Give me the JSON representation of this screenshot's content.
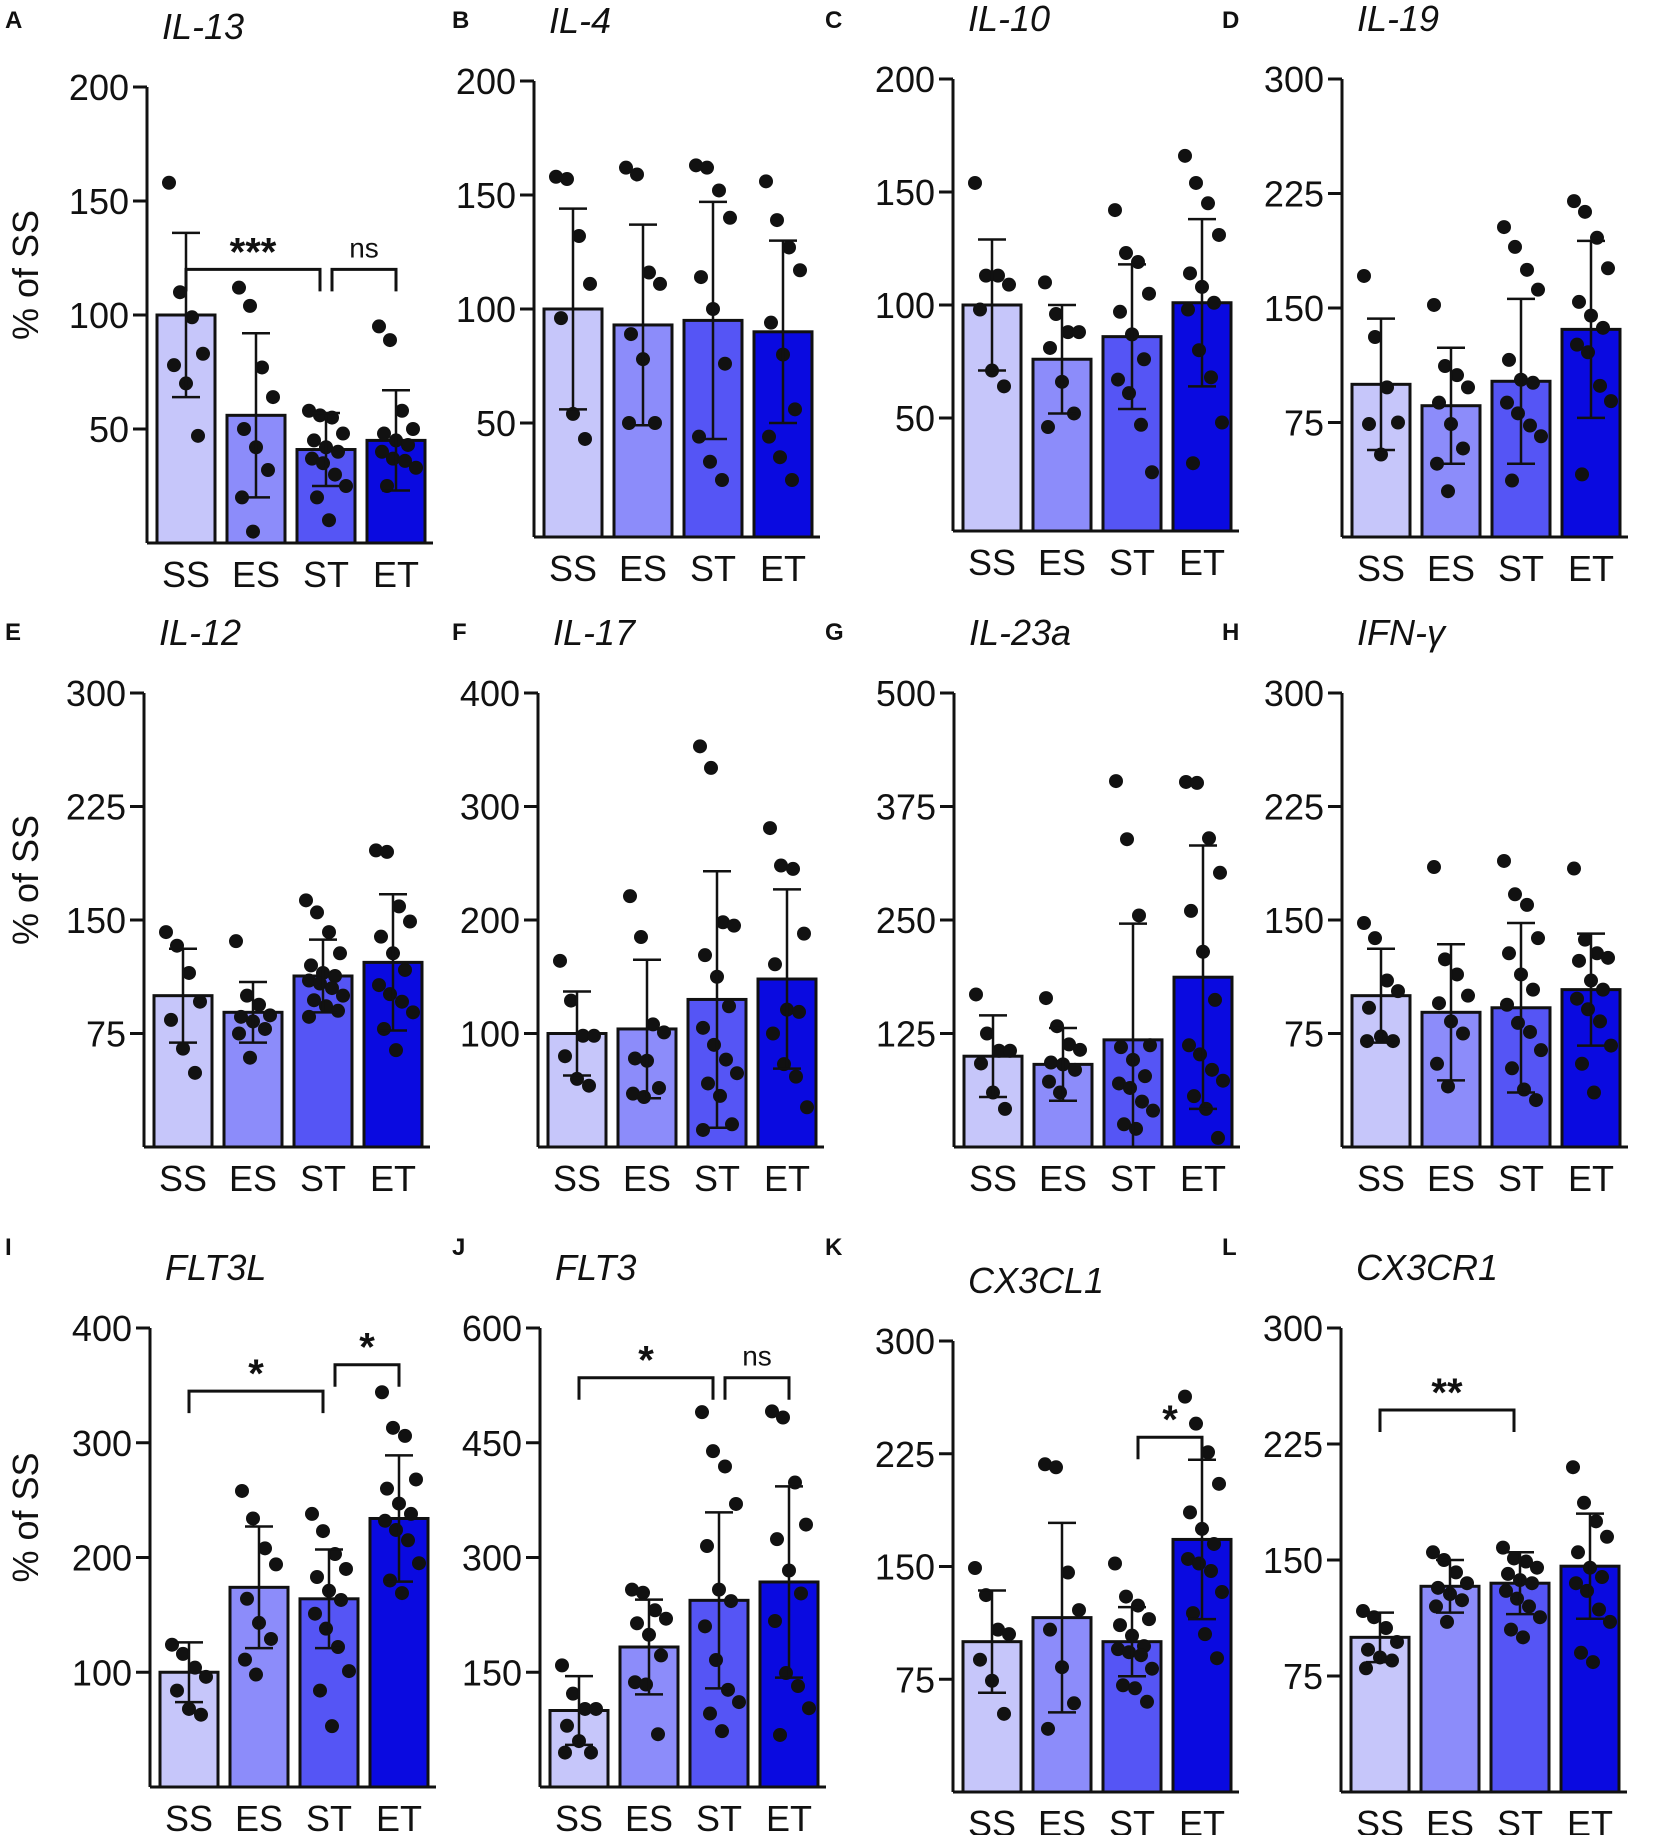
{
  "colors": {
    "SS": "#c6c6fa",
    "ES": "#8c8cfa",
    "ST": "#5555f5",
    "ET": "#0a0ae0",
    "ink": "#111111"
  },
  "chart_data": [
    {
      "type": "bar",
      "panel_letter": "A",
      "title": "IL-13",
      "ylabel": "% of SS",
      "categories": [
        "SS",
        "ES",
        "ST",
        "ET"
      ],
      "ylim": [
        0,
        200
      ],
      "yticks": [
        50,
        100,
        150,
        200
      ],
      "means": [
        100,
        56,
        41,
        45
      ],
      "sd": [
        36,
        36,
        16,
        22
      ],
      "points": [
        [
          158,
          110,
          99,
          83,
          78,
          70,
          47
        ],
        [
          112,
          104,
          77,
          64,
          50,
          42,
          32,
          20,
          5
        ],
        [
          58,
          56,
          55,
          48,
          45,
          42,
          40,
          37,
          35,
          30,
          25,
          20,
          10
        ],
        [
          95,
          89,
          58,
          50,
          48,
          45,
          43,
          40,
          37,
          36,
          33,
          25
        ]
      ],
      "annotations": [
        {
          "from": 0,
          "to": 2,
          "label": "***",
          "y": 120
        },
        {
          "from": 2,
          "to": 3,
          "label": "ns",
          "y": 120
        }
      ]
    },
    {
      "type": "bar",
      "panel_letter": "B",
      "title": "IL-4",
      "ylabel": "",
      "categories": [
        "SS",
        "ES",
        "ST",
        "ET"
      ],
      "ylim": [
        0,
        200
      ],
      "yticks": [
        50,
        100,
        150,
        200
      ],
      "means": [
        100,
        93,
        95,
        90
      ],
      "sd": [
        44,
        44,
        52,
        40
      ],
      "points": [
        [
          158,
          157,
          132,
          111,
          96,
          54,
          43
        ],
        [
          162,
          159,
          116,
          111,
          89,
          78,
          50,
          50
        ],
        [
          163,
          162,
          152,
          140,
          114,
          100,
          76,
          44,
          33,
          25
        ],
        [
          156,
          139,
          127,
          117,
          94,
          80,
          56,
          44,
          35,
          25
        ]
      ],
      "annotations": []
    },
    {
      "type": "bar",
      "panel_letter": "C",
      "title": "IL-10",
      "ylabel": "",
      "categories": [
        "SS",
        "ES",
        "ST",
        "ET"
      ],
      "ylim": [
        0,
        200
      ],
      "yticks": [
        50,
        100,
        150,
        200
      ],
      "means": [
        100,
        76,
        86,
        101
      ],
      "sd": [
        29,
        24,
        32,
        37
      ],
      "points": [
        [
          154,
          113,
          113,
          109,
          98,
          71,
          64
        ],
        [
          110,
          96,
          88,
          88,
          81,
          66,
          52,
          46
        ],
        [
          142,
          123,
          119,
          105,
          97,
          87,
          76,
          67,
          61,
          47,
          26
        ],
        [
          166,
          154,
          145,
          131,
          114,
          108,
          101,
          98,
          80,
          68,
          48,
          30
        ]
      ],
      "annotations": []
    },
    {
      "type": "bar",
      "panel_letter": "D",
      "title": "IL-19",
      "ylabel": "",
      "categories": [
        "SS",
        "ES",
        "ST",
        "ET"
      ],
      "ylim": [
        0,
        300
      ],
      "yticks": [
        75,
        150,
        225,
        300
      ],
      "means": [
        100,
        86,
        102,
        136
      ],
      "sd": [
        43,
        38,
        54,
        58
      ],
      "points": [
        [
          171,
          131,
          98,
          75,
          74,
          54
        ],
        [
          152,
          112,
          106,
          98,
          88,
          74,
          58,
          48,
          30
        ],
        [
          203,
          190,
          175,
          162,
          116,
          103,
          101,
          88,
          81,
          73,
          66,
          37
        ],
        [
          220,
          213,
          196,
          176,
          154,
          145,
          137,
          126,
          121,
          99,
          89,
          41
        ]
      ],
      "annotations": []
    },
    {
      "type": "bar",
      "panel_letter": "E",
      "title": "IL-12",
      "ylabel": "% of SS",
      "categories": [
        "SS",
        "ES",
        "ST",
        "ET"
      ],
      "ylim": [
        0,
        300
      ],
      "yticks": [
        75,
        150,
        225,
        300
      ],
      "means": [
        100,
        89,
        113,
        122
      ],
      "sd": [
        31,
        20,
        24,
        45
      ],
      "points": [
        [
          142,
          133,
          115,
          96,
          84,
          65,
          49
        ],
        [
          136,
          100,
          94,
          87,
          86,
          83,
          78,
          75,
          59
        ],
        [
          163,
          155,
          142,
          128,
          120,
          115,
          113,
          110,
          108,
          105,
          100,
          97,
          93,
          90,
          86
        ],
        [
          196,
          195,
          159,
          149,
          139,
          128,
          117,
          107,
          101,
          96,
          89,
          78,
          64
        ]
      ],
      "annotations": []
    },
    {
      "type": "bar",
      "panel_letter": "F",
      "title": "IL-17",
      "ylabel": "",
      "categories": [
        "SS",
        "ES",
        "ST",
        "ET"
      ],
      "ylim": [
        0,
        400
      ],
      "yticks": [
        100,
        200,
        300,
        400
      ],
      "means": [
        100,
        104,
        130,
        148
      ],
      "sd": [
        37,
        61,
        113,
        79
      ],
      "points": [
        [
          164,
          129,
          98,
          98,
          80,
          60,
          54
        ],
        [
          221,
          185,
          108,
          101,
          78,
          76,
          52,
          47,
          44
        ],
        [
          353,
          334,
          198,
          195,
          169,
          150,
          124,
          105,
          90,
          77,
          65,
          56,
          45,
          20,
          15
        ],
        [
          281,
          248,
          245,
          188,
          161,
          121,
          119,
          100,
          73,
          62,
          35
        ]
      ],
      "annotations": []
    },
    {
      "type": "bar",
      "panel_letter": "G",
      "title": "IL-23a",
      "ylabel": "",
      "categories": [
        "SS",
        "ES",
        "ST",
        "ET"
      ],
      "ylim": [
        0,
        500
      ],
      "yticks": [
        125,
        250,
        375,
        500
      ],
      "means": [
        100,
        91,
        118,
        187
      ],
      "sd": [
        45,
        40,
        128,
        145
      ],
      "points": [
        [
          168,
          125,
          106,
          106,
          92,
          60,
          42
        ],
        [
          164,
          133,
          113,
          107,
          93,
          91,
          85,
          72,
          60
        ],
        [
          403,
          339,
          255,
          112,
          110,
          96,
          78,
          70,
          65,
          50,
          40,
          25,
          20
        ],
        [
          402,
          401,
          340,
          302,
          260,
          215,
          162,
          112,
          102,
          85,
          73,
          56,
          42,
          10
        ]
      ],
      "annotations": []
    },
    {
      "type": "bar",
      "panel_letter": "H",
      "title": "IFN-γ",
      "ylabel": "",
      "categories": [
        "SS",
        "ES",
        "ST",
        "ET"
      ],
      "ylim": [
        0,
        300
      ],
      "yticks": [
        75,
        150,
        225,
        300
      ],
      "means": [
        100,
        89,
        92,
        104
      ],
      "sd": [
        31,
        45,
        56,
        37
      ],
      "points": [
        [
          148,
          138,
          110,
          103,
          92,
          73,
          70,
          70
        ],
        [
          185,
          124,
          114,
          100,
          95,
          83,
          75,
          55,
          40
        ],
        [
          189,
          167,
          160,
          138,
          128,
          114,
          104,
          94,
          82,
          76,
          64,
          52,
          38,
          31
        ],
        [
          184,
          137,
          128,
          125,
          123,
          110,
          104,
          98,
          91,
          83,
          67,
          55,
          36
        ]
      ],
      "annotations": []
    },
    {
      "type": "bar",
      "panel_letter": "I",
      "title": "FLT3L",
      "ylabel": "% of SS",
      "categories": [
        "SS",
        "ES",
        "ST",
        "ET"
      ],
      "ylim": [
        0,
        400
      ],
      "yticks": [
        100,
        200,
        300,
        400
      ],
      "means": [
        100,
        174,
        164,
        234
      ],
      "sd": [
        26,
        53,
        43,
        55
      ],
      "points": [
        [
          124,
          116,
          104,
          96,
          84,
          68,
          63
        ],
        [
          258,
          234,
          208,
          194,
          164,
          143,
          129,
          111,
          98
        ],
        [
          238,
          223,
          203,
          190,
          183,
          171,
          163,
          151,
          138,
          122,
          101,
          84,
          53
        ],
        [
          344,
          313,
          306,
          268,
          260,
          247,
          238,
          232,
          224,
          215,
          195,
          180,
          169
        ]
      ],
      "annotations": [
        {
          "from": 0,
          "to": 2,
          "label": "*",
          "y": 345
        },
        {
          "from": 2,
          "to": 3,
          "label": "*",
          "y": 368
        }
      ]
    },
    {
      "type": "bar",
      "panel_letter": "J",
      "title": "FLT3",
      "ylabel": "",
      "categories": [
        "SS",
        "ES",
        "ST",
        "ET"
      ],
      "ylim": [
        0,
        600
      ],
      "yticks": [
        150,
        300,
        450,
        600
      ],
      "means": [
        100,
        183,
        244,
        268
      ],
      "sd": [
        45,
        62,
        115,
        125
      ],
      "points": [
        [
          159,
          122,
          102,
          102,
          80,
          60,
          45,
          45
        ],
        [
          258,
          254,
          231,
          220,
          214,
          199,
          172,
          137,
          134,
          69
        ],
        [
          490,
          439,
          419,
          370,
          315,
          258,
          243,
          210,
          166,
          127,
          111,
          96,
          73
        ],
        [
          491,
          483,
          398,
          343,
          324,
          283,
          253,
          217,
          149,
          132,
          103,
          68
        ]
      ],
      "annotations": [
        {
          "from": 0,
          "to": 2,
          "label": "*",
          "y": 535
        },
        {
          "from": 2,
          "to": 3,
          "label": "ns",
          "y": 535
        }
      ]
    },
    {
      "type": "bar",
      "panel_letter": "K",
      "title": "CX3CL1",
      "ylabel": "",
      "categories": [
        "SS",
        "ES",
        "ST",
        "ET"
      ],
      "ylim": [
        0,
        300
      ],
      "yticks": [
        75,
        150,
        225,
        300
      ],
      "means": [
        100,
        116,
        100,
        168
      ],
      "sd": [
        34,
        63,
        23,
        53
      ],
      "points": [
        [
          149,
          131,
          108,
          105,
          88,
          74,
          52
        ],
        [
          218,
          216,
          146,
          121,
          108,
          83,
          59,
          42
        ],
        [
          152,
          130,
          124,
          115,
          111,
          104,
          97,
          95,
          93,
          91,
          82,
          71,
          69,
          60
        ],
        [
          263,
          245,
          226,
          205,
          186,
          175,
          165,
          155,
          152,
          147,
          133,
          119,
          105,
          89
        ]
      ],
      "annotations": [
        {
          "from": 2,
          "to": 3,
          "label": "*",
          "y": 236
        }
      ]
    },
    {
      "type": "bar",
      "panel_letter": "L",
      "title": "CX3CR1",
      "ylabel": "",
      "categories": [
        "SS",
        "ES",
        "ST",
        "ET"
      ],
      "ylim": [
        0,
        300
      ],
      "yticks": [
        75,
        150,
        225,
        300
      ],
      "means": [
        100,
        133,
        135,
        146
      ],
      "sd": [
        16,
        17,
        20,
        34
      ],
      "points": [
        [
          117,
          113,
          106,
          97,
          92,
          87,
          85,
          80
        ],
        [
          155,
          150,
          142,
          135,
          132,
          128,
          124,
          120,
          110
        ],
        [
          158,
          151,
          149,
          145,
          141,
          137,
          135,
          130,
          125,
          120,
          113,
          105,
          100
        ],
        [
          210,
          187,
          175,
          165,
          155,
          145,
          139,
          135,
          130,
          118,
          110,
          90,
          84
        ]
      ],
      "annotations": [
        {
          "from": 0,
          "to": 2,
          "label": "**",
          "y": 247
        }
      ]
    }
  ]
}
